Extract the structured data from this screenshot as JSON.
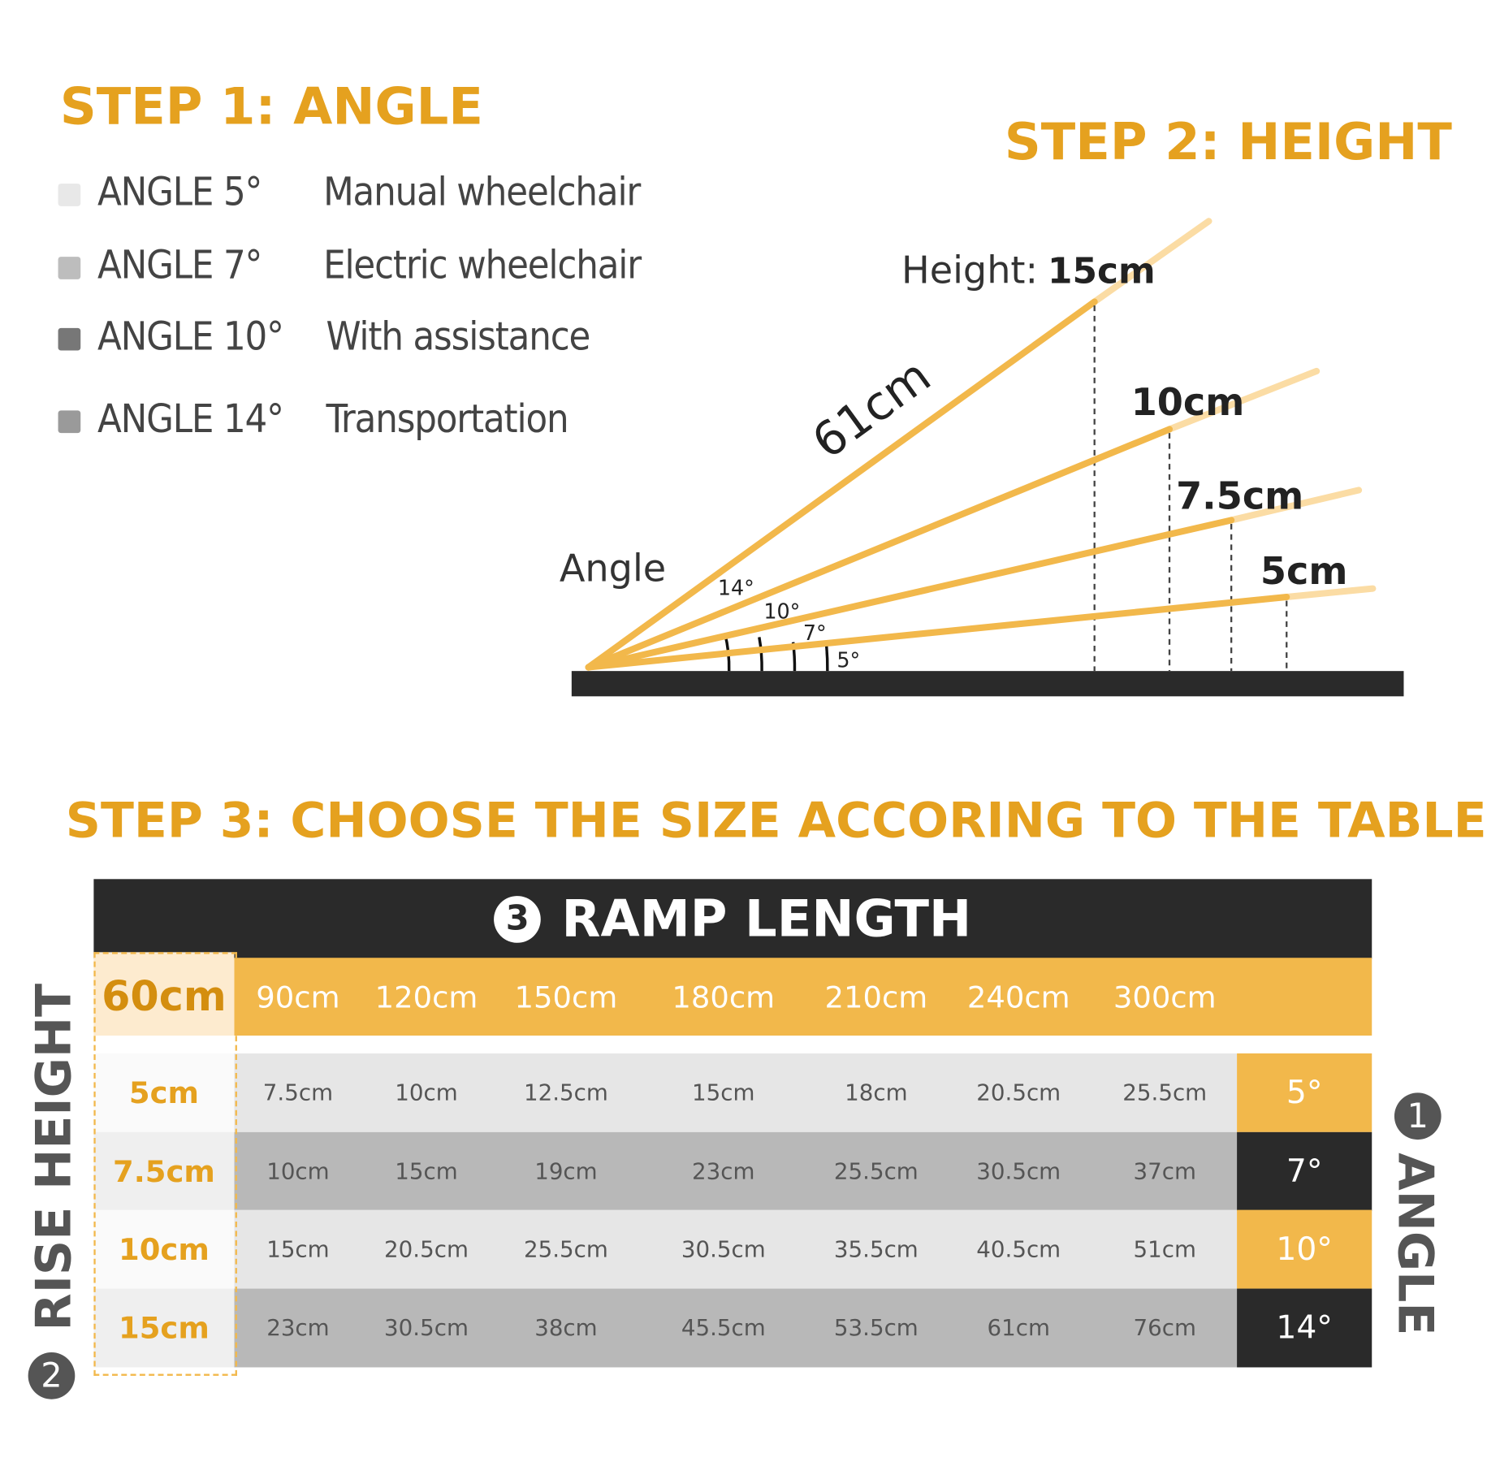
{
  "step1": {
    "title": "STEP 1: ANGLE",
    "legend": [
      {
        "angle": "ANGLE 5°",
        "use": "Manual wheelchair",
        "color": "#e8e8e8"
      },
      {
        "angle": "ANGLE 7°",
        "use": "Electric wheelchair",
        "color": "#bdbdbd"
      },
      {
        "angle": "ANGLE 10°",
        "use": "With assistance",
        "color": "#777777"
      },
      {
        "angle": "ANGLE 14°",
        "use": "Transportation",
        "color": "#9a9a9a"
      }
    ]
  },
  "step2": {
    "title": "STEP 2: HEIGHT",
    "height_label": "Height:",
    "length_label": "61cm",
    "angle_label": "Angle",
    "heights": [
      "15cm",
      "10cm",
      "7.5cm",
      "5cm"
    ],
    "angles": [
      "14°",
      "10°",
      "7°",
      "5°"
    ]
  },
  "step3": {
    "title": "STEP 3: CHOOSE THE SIZE ACCORING TO THE TABLE",
    "ramp_length_num": "3",
    "ramp_length": "RAMP LENGTH",
    "rise_height_num": "2",
    "rise_height": "RISE HEIGHT",
    "angle_num": "1",
    "angle": "ANGLE",
    "lengths": [
      "60cm",
      "90cm",
      "120cm",
      "150cm",
      "180cm",
      "210cm",
      "240cm",
      "300cm"
    ],
    "rows": [
      {
        "rise": "5cm",
        "values": [
          "7.5cm",
          "10cm",
          "12.5cm",
          "15cm",
          "18cm",
          "20.5cm",
          "25.5cm"
        ],
        "angle": "5°"
      },
      {
        "rise": "7.5cm",
        "values": [
          "10cm",
          "15cm",
          "19cm",
          "23cm",
          "25.5cm",
          "30.5cm",
          "37cm"
        ],
        "angle": "7°"
      },
      {
        "rise": "10cm",
        "values": [
          "15cm",
          "20.5cm",
          "25.5cm",
          "30.5cm",
          "35.5cm",
          "40.5cm",
          "51cm"
        ],
        "angle": "10°"
      },
      {
        "rise": "15cm",
        "values": [
          "23cm",
          "30.5cm",
          "38cm",
          "45.5cm",
          "53.5cm",
          "61cm",
          "76cm"
        ],
        "angle": "14°"
      }
    ]
  },
  "colors": {
    "accent": "#f2b84b",
    "accent_text": "#e5a11f",
    "dark": "#2a2a2a"
  }
}
